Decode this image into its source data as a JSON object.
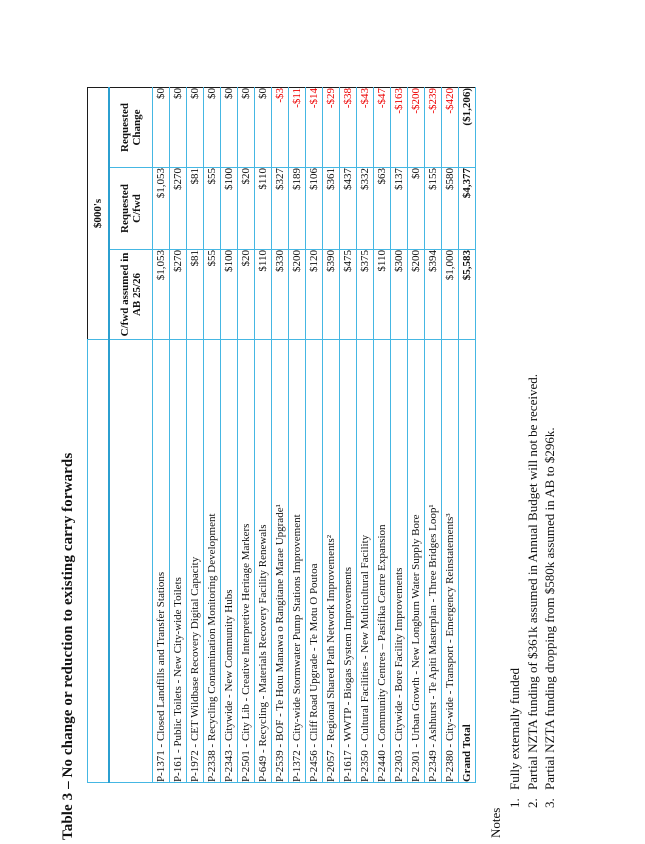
{
  "page": {
    "title": "Table 3 – No change or reduction to existing carry forwards"
  },
  "table": {
    "units_label": "$000's",
    "columns": [
      "C/fwd assumed in AB 25/26",
      "Requested C/fwd",
      "Requested Change"
    ],
    "rows": [
      {
        "name": "P-1371 - Closed Landfills and Transfer Stations",
        "cfwd": "$1,053",
        "requested": "$1,053",
        "change": "$0"
      },
      {
        "name": "P-161 - Public Toilets - New City-wide Toilets",
        "cfwd": "$270",
        "requested": "$270",
        "change": "$0"
      },
      {
        "name": "P-1972 - CET Wildbase Recovery Digital Capacity",
        "cfwd": "$81",
        "requested": "$81",
        "change": "$0"
      },
      {
        "name": "P-2338 - Recycling Contamination Monitoring Development",
        "cfwd": "$55",
        "requested": "$55",
        "change": "$0"
      },
      {
        "name": "P-2343 - Citywide - New Community Hubs",
        "cfwd": "$100",
        "requested": "$100",
        "change": "$0"
      },
      {
        "name": "P-2501 - City Lib - Creative Interpretive Heritage Markers",
        "cfwd": "$20",
        "requested": "$20",
        "change": "$0"
      },
      {
        "name": "P-649 - Recycling - Materials Recovery Facility Renewals",
        "cfwd": "$110",
        "requested": "$110",
        "change": "$0"
      },
      {
        "name": "P-2539 - BOF - Te Hotu Manawa o Rangitane Marae Upgrade¹",
        "cfwd": "$330",
        "requested": "$327",
        "change": "-$3"
      },
      {
        "name": "P-1372 - City-wide Stormwater Pump Stations Improvement",
        "cfwd": "$200",
        "requested": "$189",
        "change": "-$11"
      },
      {
        "name": "P-2456 - Cliff Road Upgrade - Te Motu O Poutoa",
        "cfwd": "$120",
        "requested": "$106",
        "change": "-$14"
      },
      {
        "name": "P-2057 - Regional Shared Path Network Improvements²",
        "cfwd": "$390",
        "requested": "$361",
        "change": "-$29"
      },
      {
        "name": "P-1617 - WWTP - Biogas System Improvements",
        "cfwd": "$475",
        "requested": "$437",
        "change": "-$38"
      },
      {
        "name": "P-2350 - Cultural Facilities - New Multicultural Facility",
        "cfwd": "$375",
        "requested": "$332",
        "change": "-$43"
      },
      {
        "name": "P-2440 - Community Centres – Pasifika Centre Expansion",
        "cfwd": "$110",
        "requested": "$63",
        "change": "-$47"
      },
      {
        "name": "P-2303 - Citywide - Bore Facility Improvements",
        "cfwd": "$300",
        "requested": "$137",
        "change": "-$163"
      },
      {
        "name": "P-2301 - Urban Growth - New Longburn Water Supply Bore",
        "cfwd": "$200",
        "requested": "$0",
        "change": "-$200"
      },
      {
        "name": "P-2349 - Ashhurst - Te Apiti Masterplan - Three Bridges Loop¹",
        "cfwd": "$394",
        "requested": "$155",
        "change": "-$239"
      },
      {
        "name": "P-2380 - City-wide - Transport - Emergency Reinstatements³",
        "cfwd": "$1,000",
        "requested": "$580",
        "change": "-$420"
      },
      {
        "name": "Grand Total",
        "cfwd": "$5,583",
        "requested": "$4,377",
        "change": "($1,206)",
        "is_total": true
      }
    ]
  },
  "notes": {
    "heading": "Notes",
    "items": [
      {
        "num": "1.",
        "text": "Fully externally funded"
      },
      {
        "num": "2.",
        "text": "Partial NZTA funding of $361k assumed in Annual Budget will not be received."
      },
      {
        "num": "3.",
        "text": "Partial NZTA funding dropping from $580k assumed in AB to $296k."
      }
    ]
  },
  "colors": {
    "grid_blue": "#45b7e3",
    "grid_heavy_blue": "#2b9fd0",
    "negative_red": "#ee0000",
    "outer_dark_border": "#1c1c1c"
  }
}
